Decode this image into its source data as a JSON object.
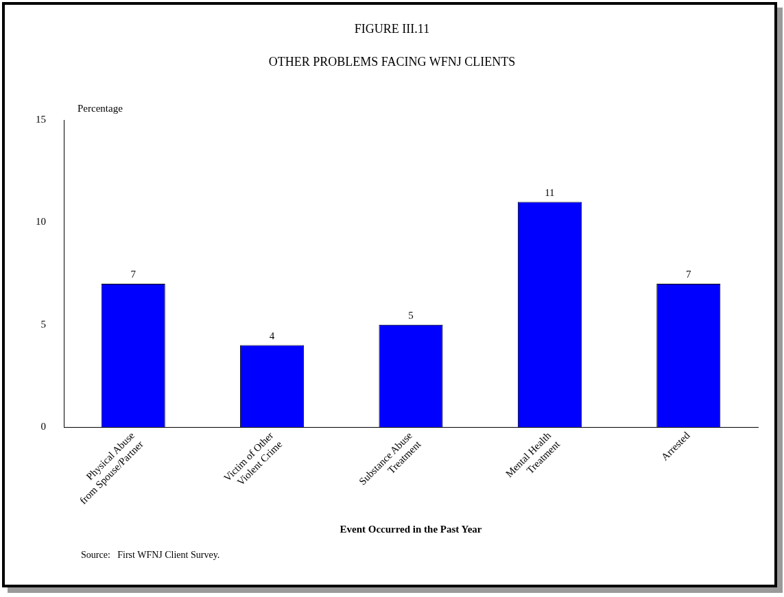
{
  "chart_data": {
    "type": "bar",
    "title": "FIGURE III.11",
    "subtitle": "OTHER PROBLEMS FACING WFNJ CLIENTS",
    "ylabel": "Percentage",
    "xlabel": "Event Occurred in the Past Year",
    "annotations": [
      "Source:   First WFNJ Client Survey."
    ],
    "categories": [
      "Physical Abuse\nfrom Spouse/Partner",
      "Victim of Other\nViolent Crime",
      "Substance Abuse\nTreatment",
      "Mental Health\nTreatment",
      "Arrested"
    ],
    "values": [
      7,
      4,
      5,
      11,
      7
    ],
    "color": "#0000ff",
    "ylim": [
      0,
      15
    ],
    "yticks": [
      0,
      5,
      10,
      15
    ],
    "grid": false,
    "legend": false,
    "data_labels": true
  }
}
